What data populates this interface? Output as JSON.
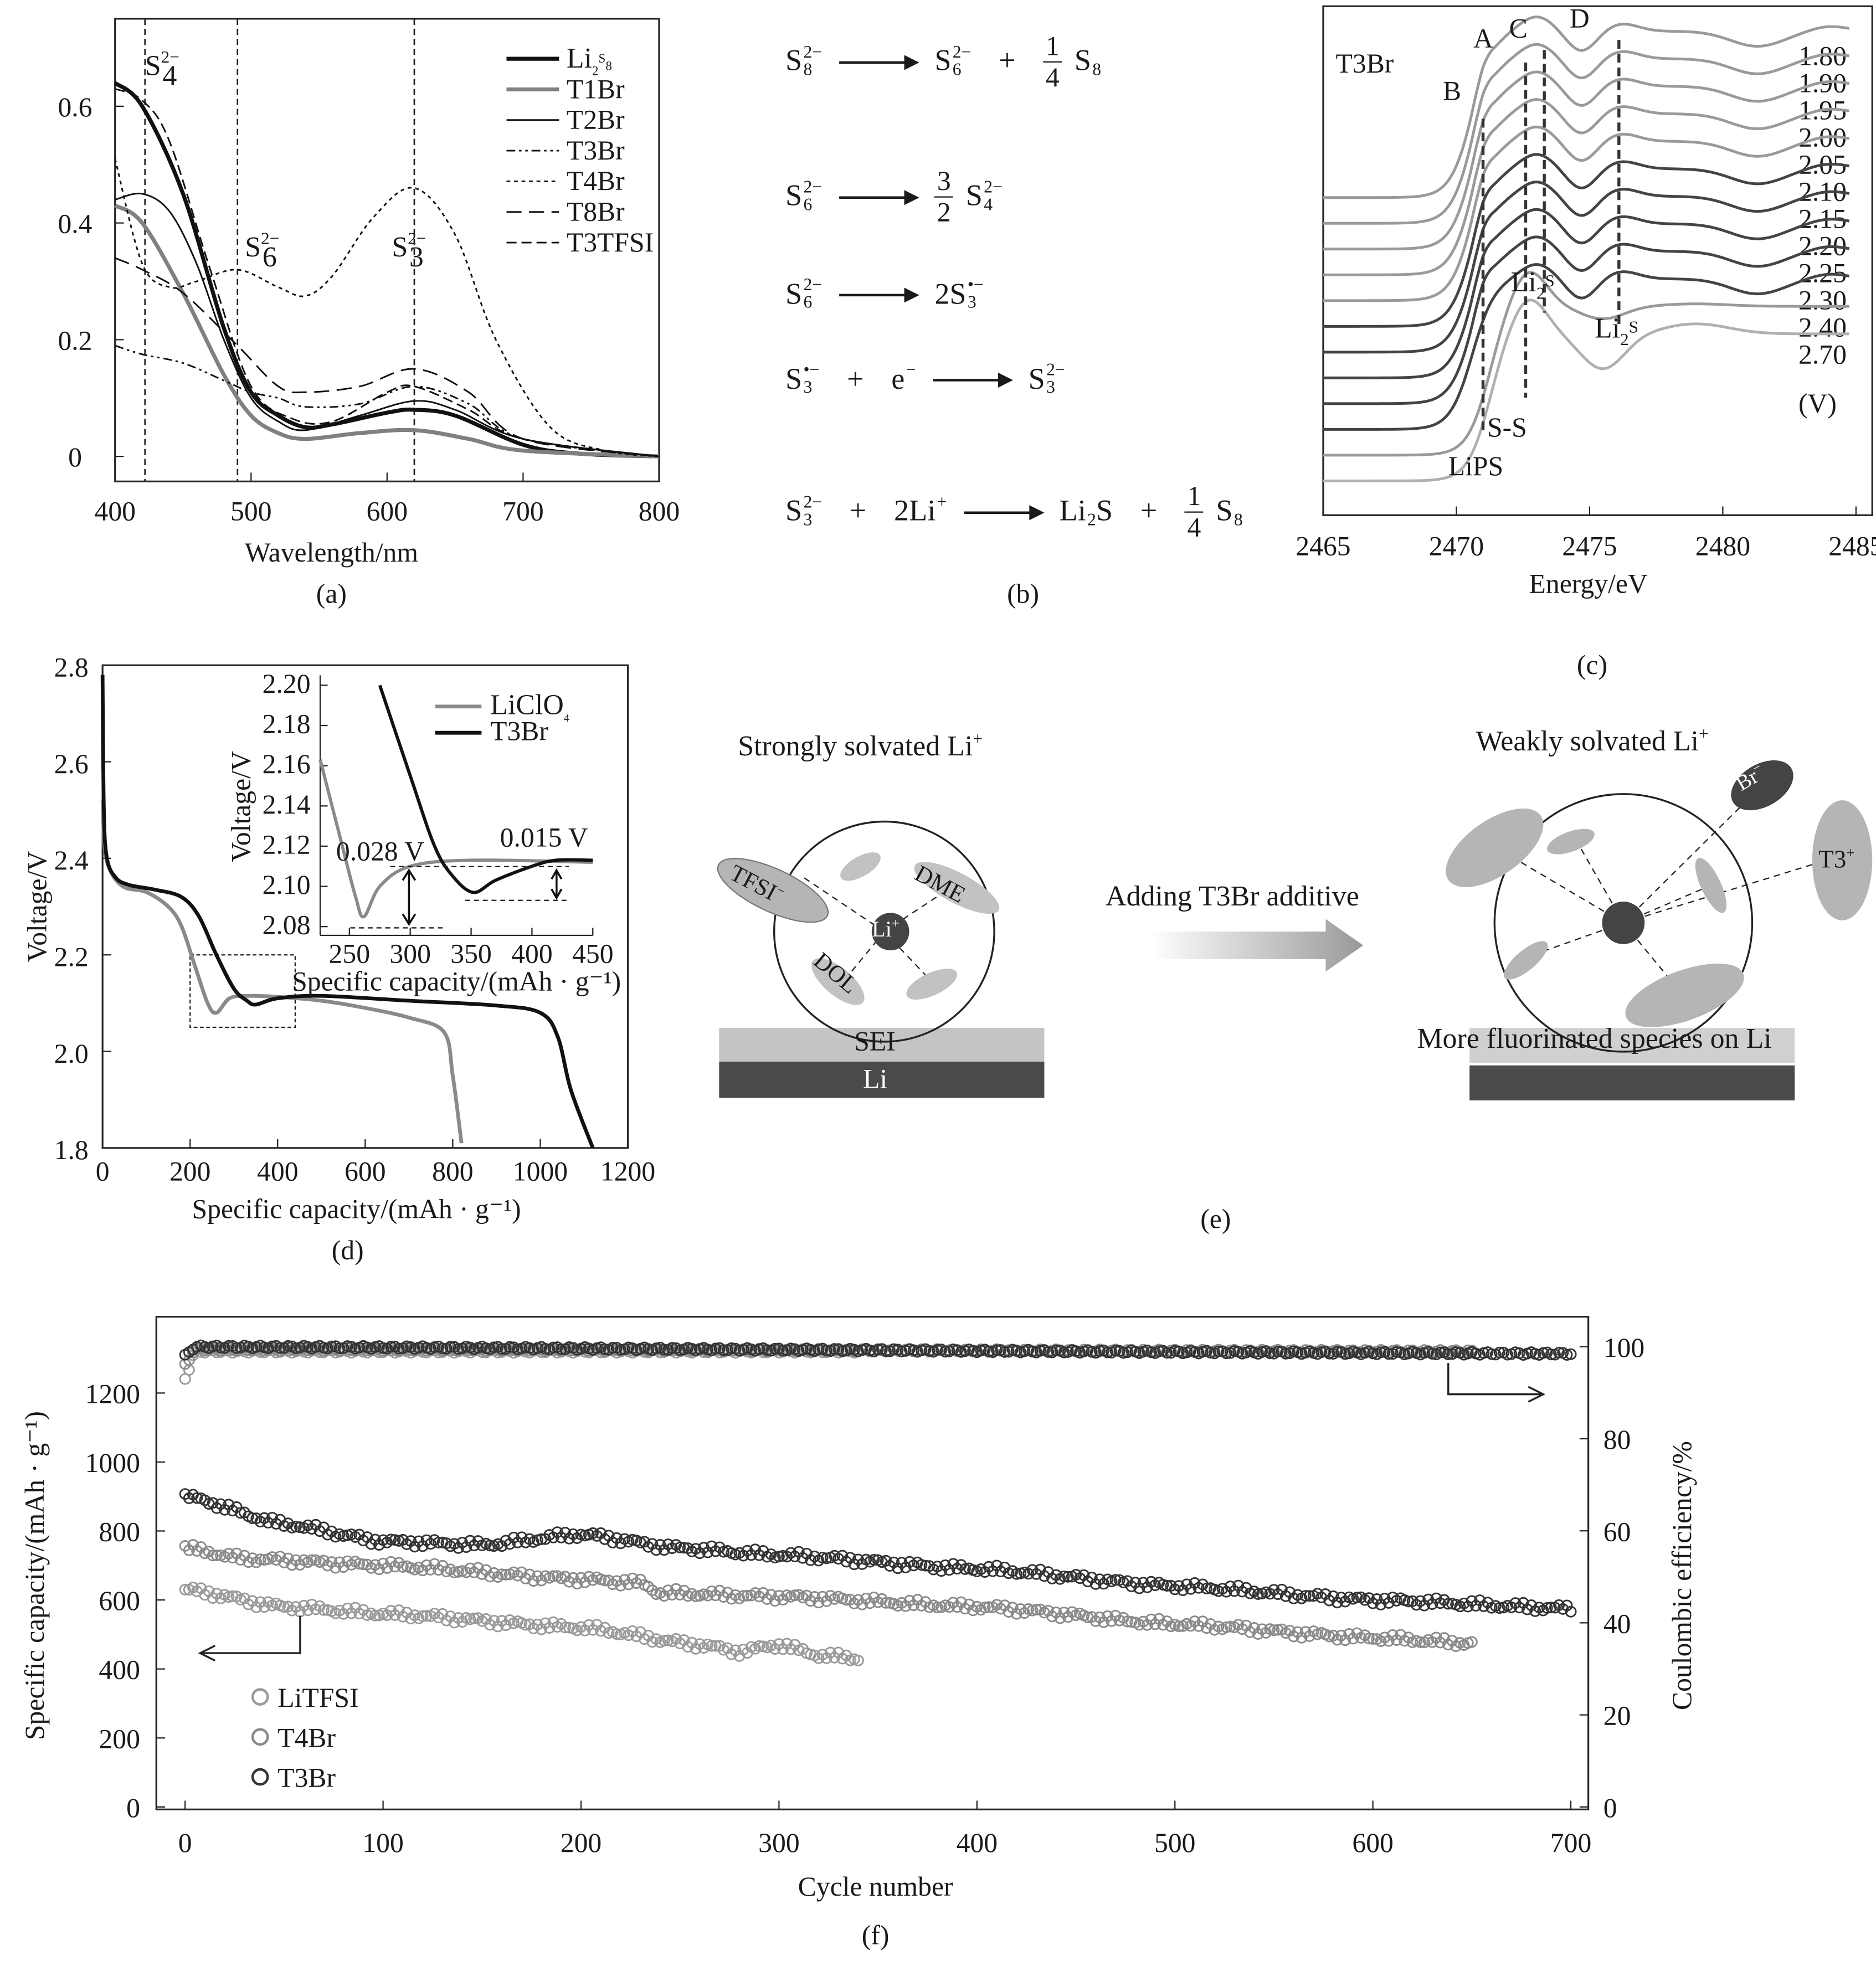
{
  "panel_labels": {
    "a": "(a)",
    "b": "(b)",
    "c": "(c)",
    "d": "(d)",
    "e": "(e)",
    "f": "(f)"
  },
  "chart_data": [
    {
      "id": "a",
      "type": "line",
      "xlabel": "Wavelength/nm",
      "ylabel": "",
      "xlim": [
        400,
        800
      ],
      "ylim": [
        -0.04,
        0.75
      ],
      "xticks": [
        "400",
        "500",
        "600",
        "700",
        "800"
      ],
      "yticks": [
        "0",
        "0.2",
        "0.4",
        "0.6"
      ],
      "legend_position": "top-right",
      "annotations": [
        {
          "x": 422,
          "label": "S",
          "sub": "4",
          "sup": "2−"
        },
        {
          "x": 490,
          "label": "S",
          "sub": "6",
          "sup": "2−"
        },
        {
          "x": 620,
          "label": "S",
          "sub": "3",
          "sup": "2−"
        }
      ],
      "series": [
        {
          "name": "Li2S8",
          "legend": "Li",
          "legend_sub": "2",
          "legend_rest": "S",
          "legend_sub2": "8",
          "color": "#111111",
          "style": "solid-thick",
          "x": [
            400,
            420,
            450,
            480,
            500,
            520,
            540,
            560,
            600,
            620,
            650,
            700,
            740,
            800
          ],
          "y": [
            0.64,
            0.6,
            0.45,
            0.22,
            0.11,
            0.07,
            0.05,
            0.055,
            0.075,
            0.08,
            0.07,
            0.02,
            0.005,
            0
          ]
        },
        {
          "name": "T1Br",
          "legend": "T1Br",
          "color": "#808080",
          "style": "solid-thick",
          "x": [
            400,
            420,
            450,
            480,
            500,
            520,
            540,
            580,
            620,
            660,
            700,
            800
          ],
          "y": [
            0.43,
            0.4,
            0.28,
            0.14,
            0.07,
            0.04,
            0.03,
            0.04,
            0.045,
            0.03,
            0.01,
            0
          ]
        },
        {
          "name": "T2Br",
          "legend": "T2Br",
          "color": "#111111",
          "style": "solid-thin",
          "x": [
            400,
            420,
            440,
            460,
            480,
            500,
            520,
            540,
            580,
            620,
            650,
            700,
            800
          ],
          "y": [
            0.44,
            0.45,
            0.42,
            0.33,
            0.2,
            0.1,
            0.06,
            0.045,
            0.07,
            0.095,
            0.08,
            0.03,
            0
          ]
        },
        {
          "name": "T3Br",
          "legend": "T3Br",
          "color": "#111111",
          "style": "dash-dot-dot",
          "x": [
            400,
            420,
            450,
            480,
            500,
            520,
            540,
            580,
            620,
            660,
            700,
            800
          ],
          "y": [
            0.19,
            0.175,
            0.16,
            0.13,
            0.11,
            0.1,
            0.085,
            0.09,
            0.12,
            0.09,
            0.03,
            0
          ]
        },
        {
          "name": "T4Br",
          "legend": "T4Br",
          "color": "#111111",
          "style": "dotted",
          "x": [
            400,
            420,
            440,
            460,
            490,
            520,
            540,
            560,
            590,
            620,
            650,
            680,
            720,
            760,
            800
          ],
          "y": [
            0.51,
            0.33,
            0.29,
            0.3,
            0.32,
            0.29,
            0.275,
            0.31,
            0.41,
            0.46,
            0.38,
            0.2,
            0.05,
            0.01,
            0
          ]
        },
        {
          "name": "T8Br",
          "legend": "T8Br",
          "color": "#111111",
          "style": "long-dash",
          "x": [
            400,
            420,
            450,
            490,
            520,
            540,
            580,
            620,
            660,
            700,
            800
          ],
          "y": [
            0.34,
            0.32,
            0.28,
            0.19,
            0.12,
            0.11,
            0.12,
            0.15,
            0.11,
            0.03,
            0
          ]
        },
        {
          "name": "T3TFSI",
          "legend": "T3TFSI",
          "color": "#111111",
          "style": "dash",
          "x": [
            400,
            420,
            440,
            470,
            500,
            530,
            560,
            600,
            620,
            660,
            700,
            800
          ],
          "y": [
            0.63,
            0.61,
            0.54,
            0.32,
            0.12,
            0.065,
            0.06,
            0.11,
            0.12,
            0.08,
            0.03,
            0
          ]
        }
      ]
    },
    {
      "id": "c",
      "type": "line",
      "title": "T3Br",
      "xlabel": "Energy/eV",
      "xlim": [
        2465,
        2486.5
      ],
      "xticks": [
        "2465",
        "2470",
        "2475",
        "2480",
        "2485"
      ],
      "unit_label": "(V)",
      "series_labels": [
        "1.80",
        "1.90",
        "1.95",
        "2.00",
        "2.05",
        "2.10",
        "2.15",
        "2.20",
        "2.25",
        "2.30",
        "2.40",
        "2.70"
      ],
      "markers": [
        {
          "x": 2471.0,
          "top": "B",
          "bottom": "LiPS"
        },
        {
          "x": 2472.6,
          "top": "A",
          "bottom": "S-S"
        },
        {
          "x": 2473.3,
          "top": "C",
          "bottom": ""
        },
        {
          "x": 2476.1,
          "top": "D",
          "bottom": ""
        }
      ],
      "peak_labels": [
        {
          "text": "Li",
          "sub": "2",
          "rest": "S"
        },
        {
          "text": "Li",
          "sub": "2",
          "rest": "S"
        }
      ]
    },
    {
      "id": "d",
      "type": "line",
      "xlabel": "Specific capacity/(mAh · g⁻¹)",
      "ylabel": "Voltage/V",
      "xlim": [
        0,
        1200
      ],
      "ylim": [
        1.8,
        2.8
      ],
      "xticks": [
        "0",
        "200",
        "400",
        "600",
        "800",
        "1000",
        "1200"
      ],
      "yticks": [
        "1.8",
        "2.0",
        "2.2",
        "2.4",
        "2.6",
        "2.8"
      ],
      "zoom_box": {
        "x": [
          200,
          440
        ],
        "y": [
          2.05,
          2.2
        ]
      },
      "series": [
        {
          "name": "LiClO4",
          "color": "#8a8a8a",
          "x": [
            0,
            5,
            20,
            50,
            100,
            150,
            180,
            210,
            240,
            260,
            290,
            330,
            400,
            500,
            600,
            700,
            780,
            800,
            820
          ],
          "y": [
            2.52,
            2.42,
            2.37,
            2.34,
            2.33,
            2.3,
            2.26,
            2.18,
            2.1,
            2.08,
            2.11,
            2.115,
            2.113,
            2.105,
            2.09,
            2.07,
            2.04,
            1.95,
            1.81
          ]
        },
        {
          "name": "T3Br",
          "color": "#111111",
          "x": [
            0,
            3,
            10,
            30,
            60,
            120,
            180,
            220,
            260,
            300,
            330,
            350,
            400,
            500,
            700,
            900,
            1000,
            1040,
            1070,
            1120
          ],
          "y": [
            2.78,
            2.5,
            2.4,
            2.36,
            2.345,
            2.335,
            2.32,
            2.28,
            2.2,
            2.13,
            2.105,
            2.097,
            2.11,
            2.115,
            2.105,
            2.095,
            2.08,
            2.03,
            1.92,
            1.8
          ]
        }
      ],
      "inset": {
        "xlabel": "Specific capacity/(mAh · g⁻¹)",
        "ylabel": "Voltage/V",
        "xlim": [
          226,
          450
        ],
        "ylim": [
          2.075,
          2.2
        ],
        "xticks": [
          "250",
          "300",
          "350",
          "400",
          "450"
        ],
        "yticks": [
          "2.08",
          "2.10",
          "2.12",
          "2.14",
          "2.16",
          "2.18",
          "2.20"
        ],
        "legend": [
          "LiClO",
          "T3Br"
        ],
        "legend_sub": "4",
        "annotations": [
          "0.028 V",
          "0.015 V"
        ],
        "series": [
          {
            "name": "LiClO4",
            "x": [
              226,
              240,
              255,
              262,
              275,
              300,
              350,
              450
            ],
            "y": [
              2.163,
              2.13,
              2.095,
              2.085,
              2.1,
              2.11,
              2.113,
              2.112
            ]
          },
          {
            "name": "T3Br",
            "x": [
              275,
              300,
              320,
              335,
              352,
              370,
              400,
              420,
              450
            ],
            "y": [
              2.2,
              2.155,
              2.12,
              2.105,
              2.097,
              2.103,
              2.11,
              2.113,
              2.113
            ]
          }
        ]
      }
    },
    {
      "id": "f",
      "type": "scatter",
      "xlabel": "Cycle number",
      "ylabel": "Specific capacity/(mAh · g⁻¹)",
      "ylabel_right": "Coulombic efficiency/%",
      "xlim": [
        -15,
        705
      ],
      "ylim": [
        0,
        1400
      ],
      "ylim_right": [
        0,
        100
      ],
      "xticks": [
        "0",
        "100",
        "200",
        "300",
        "400",
        "500",
        "600",
        "700"
      ],
      "yticks": [
        "0",
        "200",
        "400",
        "600",
        "800",
        "1000",
        "1200"
      ],
      "yticks_right": [
        "0",
        "20",
        "40",
        "60",
        "80",
        "100"
      ],
      "legend_position": "bottom-left",
      "series": [
        {
          "name": "LiTFSI",
          "color": "#9a9a9a",
          "cycles": [
            0,
            50,
            100,
            200,
            260,
            280,
            300,
            320,
            340
          ],
          "capacity": [
            630,
            580,
            560,
            520,
            470,
            450,
            470,
            440,
            430
          ],
          "ce_cycles": [
            0,
            5,
            340
          ],
          "ce": [
            93,
            99,
            99
          ]
        },
        {
          "name": "T4Br",
          "color": "#8a8a8a",
          "cycles": [
            0,
            30,
            100,
            200,
            230,
            240,
            300,
            400,
            500,
            600,
            650
          ],
          "capacity": [
            750,
            720,
            700,
            660,
            650,
            620,
            610,
            580,
            530,
            490,
            475
          ],
          "ce_cycles": [
            0,
            5,
            650
          ],
          "ce": [
            96,
            99.5,
            99
          ]
        },
        {
          "name": "T3Br",
          "color": "#333333",
          "cycles": [
            0,
            50,
            100,
            150,
            200,
            250,
            300,
            400,
            500,
            600,
            700
          ],
          "capacity": [
            900,
            820,
            770,
            760,
            790,
            750,
            730,
            690,
            640,
            600,
            575
          ],
          "ce_cycles": [
            0,
            5,
            700
          ],
          "ce": [
            98,
            100,
            98.5
          ]
        }
      ]
    }
  ],
  "reactions": [
    [
      {
        "t": "sp",
        "b": "S",
        "sub": "8",
        "sup": "2−"
      },
      {
        "t": "arrow"
      },
      {
        "t": "sp",
        "b": "S",
        "sub": "6",
        "sup": "2−"
      },
      {
        "t": "op",
        "v": "+"
      },
      {
        "t": "frac",
        "n": "1",
        "d": "4"
      },
      {
        "t": "sp",
        "b": "S",
        "sub": "8",
        "sup": ""
      }
    ],
    [
      {
        "t": "sp",
        "b": "S",
        "sub": "6",
        "sup": "2−"
      },
      {
        "t": "arrow"
      },
      {
        "t": "frac",
        "n": "3",
        "d": "2"
      },
      {
        "t": "sp",
        "b": "S",
        "sub": "4",
        "sup": "2−"
      }
    ],
    [
      {
        "t": "sp",
        "b": "S",
        "sub": "6",
        "sup": "2−"
      },
      {
        "t": "arrow"
      },
      {
        "t": "sp",
        "b": "2S",
        "sub": "3",
        "sup": "•−"
      }
    ],
    [
      {
        "t": "sp",
        "b": "S",
        "sub": "3",
        "sup": "•−"
      },
      {
        "t": "op",
        "v": "+"
      },
      {
        "t": "sp",
        "b": "e",
        "sub": "",
        "sup": "−"
      },
      {
        "t": "arrow"
      },
      {
        "t": "sp",
        "b": "S",
        "sub": "3",
        "sup": "2−"
      }
    ],
    [
      {
        "t": "sp",
        "b": "S",
        "sub": "3",
        "sup": "2−"
      },
      {
        "t": "op",
        "v": "+"
      },
      {
        "t": "sp",
        "b": "2Li",
        "sub": "",
        "sup": "+"
      },
      {
        "t": "arrow"
      },
      {
        "t": "sp",
        "b": "Li",
        "sub": "2",
        "sup": "",
        "after": "S"
      },
      {
        "t": "op",
        "v": "+"
      },
      {
        "t": "frac",
        "n": "1",
        "d": "4"
      },
      {
        "t": "sp",
        "b": "S",
        "sub": "8",
        "sup": ""
      }
    ]
  ],
  "solvation": {
    "left_title": "Strongly solvated Li",
    "left_title_sup": "+",
    "right_title": "Weakly solvated Li",
    "right_title_sup": "+",
    "arrow_label": "Adding T3Br additive",
    "center_ion": "Li",
    "center_ion_sup": "+",
    "tfsi": "TFSI",
    "tfsi_sup": "−",
    "dme": "DME",
    "dol": "DOL",
    "sei": "SEI",
    "li": "Li",
    "br": "Br",
    "br_sup": "−",
    "t3": "T3",
    "t3_sup": "+",
    "fluorinated": "More fluorinated species on Li"
  }
}
